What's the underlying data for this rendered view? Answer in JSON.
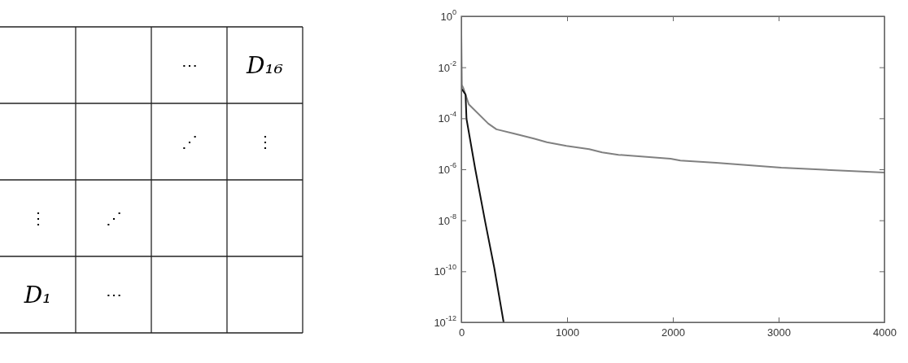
{
  "chart_data": [
    {
      "type": "other",
      "annotations": [
        "D₁₆",
        "D₁",
        "⋯",
        "⋯",
        "⋮",
        "⋮",
        "⋰",
        "⋰"
      ]
    },
    {
      "type": "line",
      "log": "y",
      "grid": false,
      "marker": "none",
      "line_style": "solid",
      "xlim": [
        0,
        4000
      ],
      "xticks": [
        0,
        1000,
        2000,
        3000,
        4000
      ],
      "ylim": [
        1e-12,
        1
      ],
      "yticks": [
        {
          "value": 1,
          "label": "10$^{0}$"
        },
        {
          "value": 0.01,
          "label": "10$^{-2}$"
        },
        {
          "value": 0.0001,
          "label": "10$^{-4}$"
        },
        {
          "value": 1e-06,
          "label": "10$^{-6}$"
        },
        {
          "value": 1e-08,
          "label": "10$^{-8}$"
        },
        {
          "value": 1e-10,
          "label": "10$^{-10}$"
        },
        {
          "value": 1e-12,
          "label": "10$^{-12}$"
        }
      ],
      "series": [
        {
          "color": "#808080",
          "x": [
            0,
            5,
            20,
            71,
            255,
            332,
            502,
            686,
            809,
            994,
            1209,
            1332,
            1486,
            1978,
            2071,
            2409,
            3025,
            4000
          ],
          "values": [
            0.2,
            0.002,
            0.0015,
            0.00035,
            6.2e-05,
            3.7e-05,
            2.5e-05,
            1.6e-05,
            1.15e-05,
            8.3e-06,
            6.2e-06,
            4.6e-06,
            3.7e-06,
            2.6e-06,
            2.2e-06,
            1.8e-06,
            1.15e-06,
            7.4e-07
          ]
        },
        {
          "color": "#111111",
          "x": [
            0,
            40,
            49,
            132,
            225,
            311,
            400
          ],
          "values": [
            0.0015,
            0.00085,
            9.5e-05,
            1e-06,
            9e-09,
            1.4e-10,
            1e-12
          ]
        }
      ]
    }
  ]
}
